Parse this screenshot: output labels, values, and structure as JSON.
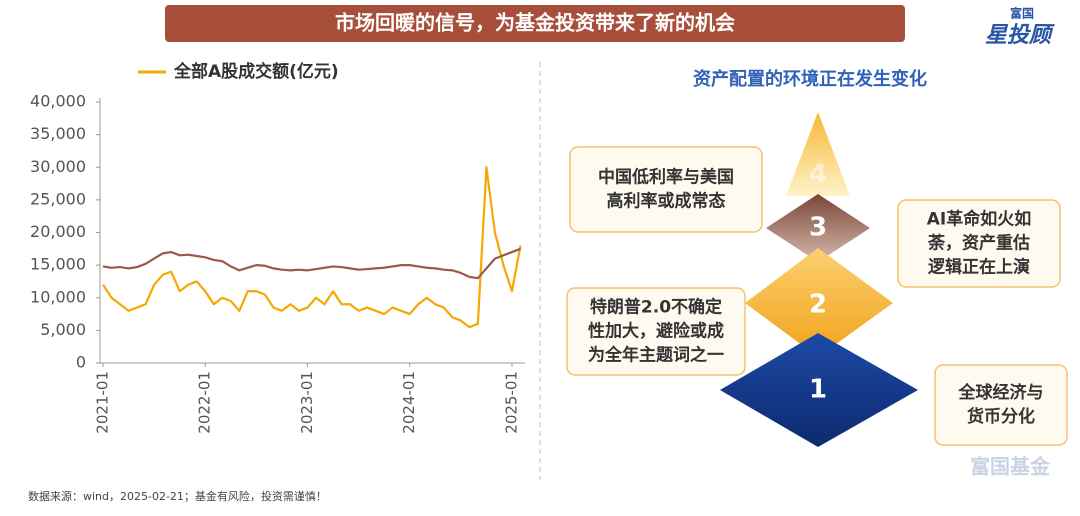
{
  "header": {
    "title": "市场回暖的信号，为基金投资带来了新的机会",
    "logo_top": "富国",
    "logo_main": "星投顾"
  },
  "chart_data": {
    "type": "line",
    "x": [
      "2021-01",
      "2021-02",
      "2021-03",
      "2021-04",
      "2021-05",
      "2021-06",
      "2021-07",
      "2021-08",
      "2021-09",
      "2021-10",
      "2021-11",
      "2021-12",
      "2022-01",
      "2022-02",
      "2022-03",
      "2022-04",
      "2022-05",
      "2022-06",
      "2022-07",
      "2022-08",
      "2022-09",
      "2022-10",
      "2022-11",
      "2022-12",
      "2023-01",
      "2023-02",
      "2023-03",
      "2023-04",
      "2023-05",
      "2023-06",
      "2023-07",
      "2023-08",
      "2023-09",
      "2023-10",
      "2023-11",
      "2023-12",
      "2024-01",
      "2024-02",
      "2024-03",
      "2024-04",
      "2024-05",
      "2024-06",
      "2024-07",
      "2024-08",
      "2024-09",
      "2024-10",
      "2024-11",
      "2024-12",
      "2025-01",
      "2025-02"
    ],
    "series": [
      {
        "name": "全部A股成交额(亿元)",
        "color": "#f5a800",
        "values": [
          12000,
          10000,
          9000,
          8000,
          8500,
          9000,
          12000,
          13500,
          14000,
          11000,
          12000,
          12500,
          11000,
          9000,
          10000,
          9500,
          8000,
          11000,
          11000,
          10500,
          8500,
          8000,
          9000,
          8000,
          8500,
          10000,
          9000,
          11000,
          9000,
          9000,
          8000,
          8500,
          8000,
          7500,
          8500,
          8000,
          7500,
          9000,
          10000,
          9000,
          8500,
          7000,
          6500,
          5500,
          6000,
          30000,
          20000,
          15000,
          11000,
          18000
        ]
      },
      {
        "color": "#9a5a48",
        "values": [
          14800,
          14600,
          14700,
          14500,
          14700,
          15200,
          16000,
          16800,
          17000,
          16500,
          16600,
          16400,
          16200,
          15800,
          15600,
          14800,
          14200,
          14600,
          15000,
          14900,
          14500,
          14300,
          14200,
          14300,
          14200,
          14400,
          14600,
          14800,
          14700,
          14500,
          14300,
          14400,
          14500,
          14600,
          14800,
          15000,
          15000,
          14800,
          14600,
          14500,
          14300,
          14200,
          13800,
          13200,
          13000,
          14500,
          16000,
          16500,
          17000,
          17500
        ]
      }
    ],
    "ylim": [
      0,
      40000
    ],
    "yticks": [
      0,
      {
        "value": 5000,
        "label": "5,000"
      },
      {
        "value": 10000,
        "label": "10,000"
      },
      {
        "value": 15000,
        "label": "15,000"
      },
      {
        "value": 20000,
        "label": "20,000"
      },
      {
        "value": 25000,
        "label": "25,000"
      },
      {
        "value": 30000,
        "label": "30,000"
      },
      {
        "value": 35000,
        "label": "35,000"
      },
      {
        "value": 40000,
        "label": "40,000"
      }
    ],
    "xticks": [
      "2021-01",
      "2022-01",
      "2023-01",
      "2024-01",
      "2025-01"
    ]
  },
  "diagram": {
    "title": "资产配置的环境正在发生变化",
    "levels": [
      "1",
      "2",
      "3",
      "4"
    ],
    "callouts": [
      [
        "中国低利率与美国",
        "高利率或成常态"
      ],
      [
        "AI革命如火如",
        "荼，资产重估",
        "逻辑正在上演"
      ],
      [
        "特朗普2.0不确定",
        "性加大，避险或成",
        "为全年主题词之一"
      ],
      [
        "全球经济与",
        "货币分化"
      ]
    ],
    "watermark": "富国基金"
  },
  "footer": {
    "source": "数据来源：wind，2025-02-21；基金有风险，投资需谨慎！"
  }
}
